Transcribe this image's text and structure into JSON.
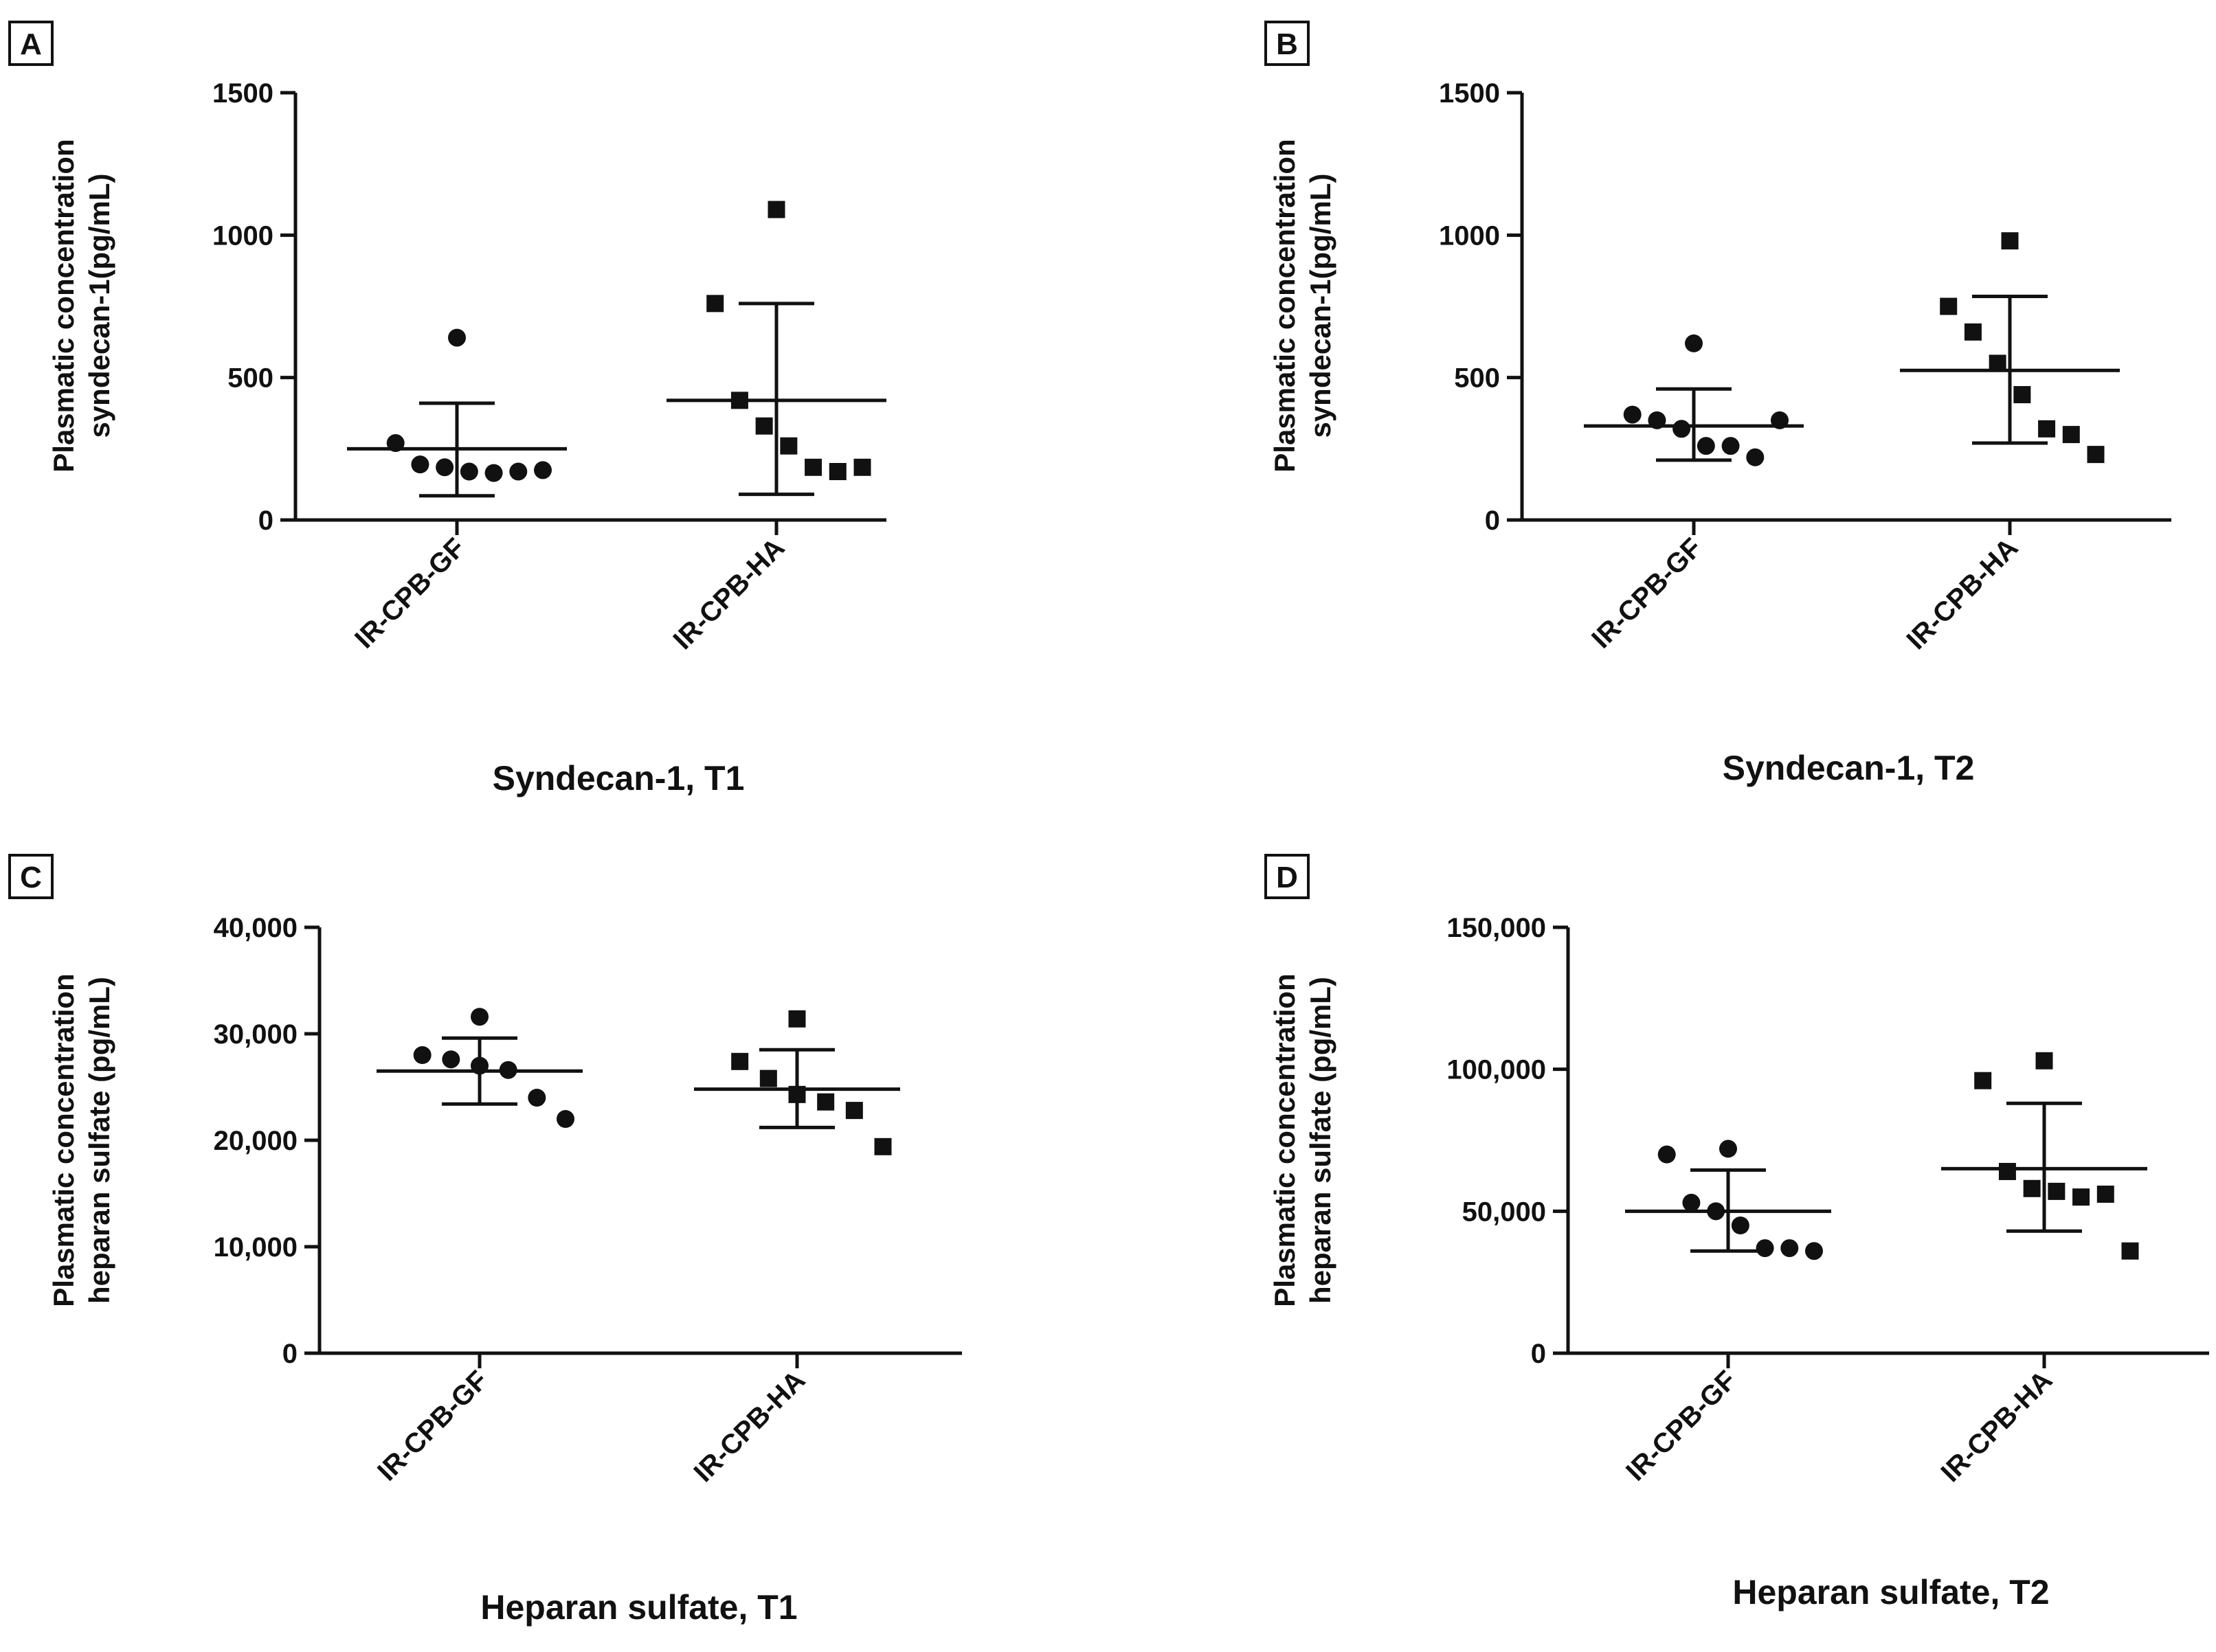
{
  "figure": {
    "colors": {
      "ink": "#111111",
      "background": "#ffffff"
    },
    "marker_shapes": {
      "IR-CPB-GF": "circle",
      "IR-CPB-HA": "square"
    }
  },
  "chart_data": [
    {
      "panel": "A",
      "type": "scatter",
      "title": "Syndecan-1, T1",
      "ylabel_lines": [
        "Plasmatic concentration",
        "syndecan-1(pg/mL)"
      ],
      "xlabel": "",
      "categories": [
        "IR-CPB-GF",
        "IR-CPB-HA"
      ],
      "ylim": [
        0,
        1500
      ],
      "yticks": [
        0,
        500,
        1000,
        1500
      ],
      "ytick_labels": [
        "0",
        "500",
        "1000",
        "1500"
      ],
      "grid": false,
      "series": [
        {
          "name": "IR-CPB-GF",
          "marker": "circle",
          "values": [
            640,
            270,
            195,
            185,
            170,
            165,
            170,
            175
          ],
          "mean": 250,
          "sd_low": 85,
          "sd_high": 410
        },
        {
          "name": "IR-CPB-HA",
          "marker": "square",
          "values": [
            1090,
            760,
            420,
            330,
            260,
            185,
            170,
            185
          ],
          "mean": 420,
          "sd_low": 90,
          "sd_high": 760
        }
      ]
    },
    {
      "panel": "B",
      "type": "scatter",
      "title": "Syndecan-1, T2",
      "ylabel_lines": [
        "Plasmatic concentration",
        "syndecan-1(pg/mL)"
      ],
      "xlabel": "",
      "categories": [
        "IR-CPB-GF",
        "IR-CPB-HA"
      ],
      "ylim": [
        0,
        1500
      ],
      "yticks": [
        0,
        500,
        1000,
        1500
      ],
      "ytick_labels": [
        "0",
        "500",
        "1000",
        "1500"
      ],
      "grid": false,
      "series": [
        {
          "name": "IR-CPB-GF",
          "marker": "circle",
          "values": [
            620,
            370,
            350,
            320,
            260,
            260,
            220,
            350
          ],
          "mean": 330,
          "sd_low": 210,
          "sd_high": 460
        },
        {
          "name": "IR-CPB-HA",
          "marker": "square",
          "values": [
            980,
            750,
            660,
            550,
            440,
            320,
            300,
            230
          ],
          "mean": 525,
          "sd_low": 270,
          "sd_high": 785
        }
      ]
    },
    {
      "panel": "C",
      "type": "scatter",
      "title": "Heparan sulfate, T1",
      "ylabel_lines": [
        "Plasmatic concentration",
        "heparan sulfate (pg/mL)"
      ],
      "xlabel": "",
      "categories": [
        "IR-CPB-GF",
        "IR-CPB-HA"
      ],
      "ylim": [
        0,
        40000
      ],
      "yticks": [
        0,
        10000,
        20000,
        30000,
        40000
      ],
      "ytick_labels": [
        "0",
        "10,000",
        "20,000",
        "30,000",
        "40,000"
      ],
      "grid": false,
      "series": [
        {
          "name": "IR-CPB-GF",
          "marker": "circle",
          "values": [
            31600,
            28000,
            27600,
            27000,
            26600,
            24000,
            22000
          ],
          "mean": 26500,
          "sd_low": 23400,
          "sd_high": 29600
        },
        {
          "name": "IR-CPB-HA",
          "marker": "square",
          "values": [
            31400,
            27400,
            25800,
            24300,
            23600,
            22800,
            19400
          ],
          "mean": 24800,
          "sd_low": 21200,
          "sd_high": 28500
        }
      ]
    },
    {
      "panel": "D",
      "type": "scatter",
      "title": "Heparan sulfate, T2",
      "ylabel_lines": [
        "Plasmatic concentration",
        "heparan sulfate (pg/mL)"
      ],
      "xlabel": "",
      "categories": [
        "IR-CPB-GF",
        "IR-CPB-HA"
      ],
      "ylim": [
        0,
        150000
      ],
      "yticks": [
        0,
        50000,
        100000,
        150000
      ],
      "ytick_labels": [
        "0",
        "50,000",
        "100,000",
        "150,000"
      ],
      "grid": false,
      "series": [
        {
          "name": "IR-CPB-GF",
          "marker": "circle",
          "values": [
            72000,
            70000,
            53000,
            50000,
            45000,
            37000,
            37000,
            36000
          ],
          "mean": 50000,
          "sd_low": 36000,
          "sd_high": 64500
        },
        {
          "name": "IR-CPB-HA",
          "marker": "square",
          "values": [
            103000,
            96000,
            64000,
            58000,
            57000,
            55000,
            56000,
            36000
          ],
          "mean": 65000,
          "sd_low": 43000,
          "sd_high": 88000
        }
      ]
    }
  ]
}
